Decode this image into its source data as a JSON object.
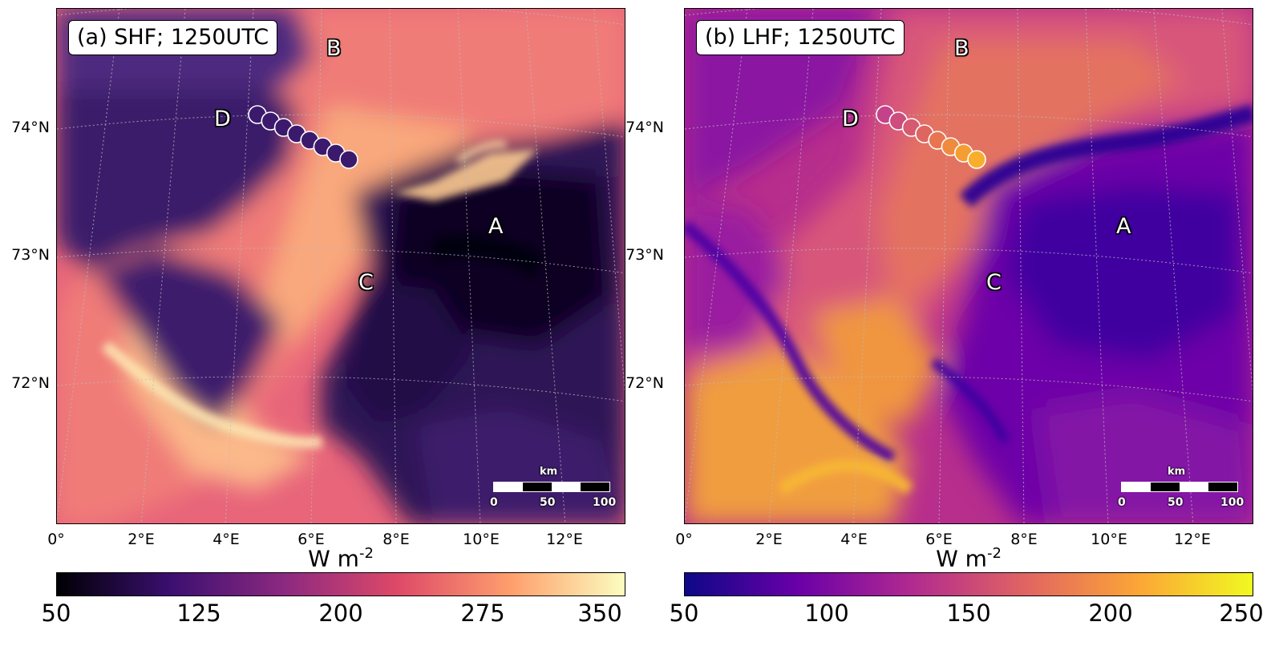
{
  "panels": [
    {
      "title": "(a) SHF; 1250UTC",
      "variable": "SHF",
      "colormap": "magma",
      "colorbar_label": "W m",
      "colorbar_exponent": "-2",
      "colorbar_ticks": [
        "50",
        "125",
        "200",
        "275",
        "350"
      ],
      "colorbar_range": [
        50,
        350
      ],
      "colorbar_colors": [
        "#000004",
        "#3b0f70",
        "#8c2981",
        "#de4968",
        "#fe9f6d",
        "#fcfdbf"
      ],
      "regions": [
        "A",
        "B",
        "C",
        "D"
      ],
      "marker_fill": "#3b1a6e",
      "marker_fills": [
        "#3b1a6e",
        "#3b1a6e",
        "#3b1a6e",
        "#3b1a6e",
        "#3b1a6e",
        "#3b1a6e",
        "#3b1a6e",
        "#3b1a6e"
      ]
    },
    {
      "title": "(b) LHF; 1250UTC",
      "variable": "LHF",
      "colormap": "plasma",
      "colorbar_label": "W m",
      "colorbar_exponent": "-2",
      "colorbar_ticks": [
        "50",
        "100",
        "150",
        "200",
        "250"
      ],
      "colorbar_range": [
        50,
        250
      ],
      "colorbar_colors": [
        "#0d0887",
        "#6a00a8",
        "#b12a90",
        "#e16462",
        "#fca636",
        "#f0f921"
      ],
      "regions": [
        "A",
        "B",
        "C",
        "D"
      ],
      "marker_fills": [
        "#c4428a",
        "#cc4d7e",
        "#d65a70",
        "#df6660",
        "#e8754f",
        "#f08a3e",
        "#f59c32",
        "#f8ae2c"
      ]
    }
  ],
  "latitudes": [
    "74°N",
    "73°N",
    "72°N"
  ],
  "longitudes": [
    "0°",
    "2°E",
    "4°E",
    "6°E",
    "8°E",
    "10°E",
    "12°E"
  ],
  "scalebar": {
    "unit": "km",
    "ticks": [
      "0",
      "50",
      "100"
    ],
    "colors": [
      "#ffffff",
      "#000000"
    ]
  },
  "observation_points": {
    "count": 8
  }
}
